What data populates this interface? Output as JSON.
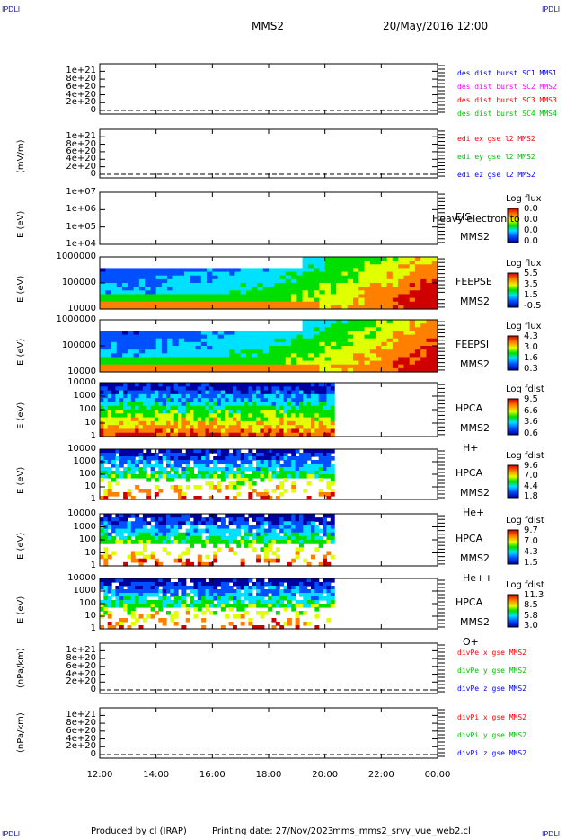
{
  "corner_marks": {
    "tl": "IPDLI",
    "tr": "IPDLI",
    "bl": "IPDLI",
    "br": "IPDLI"
  },
  "header": {
    "mission": "MMS2",
    "datetime": "20/May/2016 12:00"
  },
  "footer": {
    "produced": "Produced by cl (IRAP)",
    "printing": "Printing date: 27/Nov/2023",
    "file": "mms_mms2_srvy_vue_web2.cl"
  },
  "x_axis": {
    "ticks": [
      "12:00",
      "14:00",
      "16:00",
      "18:00",
      "20:00",
      "22:00",
      "00:00"
    ]
  },
  "colors": {
    "mms1": "#0000ff",
    "mms2": "#ff00ff",
    "mms3": "#ff0000",
    "mms4": "#00c000",
    "ex": "#ff0000",
    "ey": "#00c000",
    "ez": "#0000ff"
  },
  "chart_data": [
    {
      "id": "p1",
      "type": "line",
      "xlim": [
        "12:00",
        "00:00"
      ],
      "ylim": [
        0,
        1.1e+21
      ],
      "ytick_labels": [
        "1e+21",
        "8e+20",
        "6e+20",
        "4e+20",
        "2e+20",
        "0"
      ],
      "ylabel": "",
      "legend": [
        "des dist burst SC1 MMS1",
        "des dist burst SC2 MMS2",
        "des dist burst SC3 MMS3",
        "des dist burst SC4 MMS4"
      ],
      "series": [
        {
          "name": "des dist burst SC1 MMS1",
          "values": [
            0,
            0
          ]
        },
        {
          "name": "des dist burst SC2 MMS2",
          "values": [
            0,
            0
          ]
        },
        {
          "name": "des dist burst SC3 MMS3",
          "values": [
            0,
            0
          ]
        },
        {
          "name": "des dist burst SC4 MMS4",
          "values": [
            0,
            0
          ]
        }
      ]
    },
    {
      "id": "p2",
      "type": "line",
      "xlim": [
        "12:00",
        "00:00"
      ],
      "ylim": [
        0,
        1.1e+21
      ],
      "ytick_labels": [
        "1e+21",
        "8e+20",
        "6e+20",
        "4e+20",
        "2e+20",
        "0"
      ],
      "ylabel": "(mV/m)",
      "legend": [
        "edi ex gse l2 MMS2",
        "edi ey gse l2 MMS2",
        "edi ez gse l2 MMS2"
      ],
      "series": [
        {
          "name": "edi ex gse l2 MMS2",
          "values": [
            0,
            0
          ]
        },
        {
          "name": "edi ey gse l2 MMS2",
          "values": [
            0,
            0
          ]
        },
        {
          "name": "edi ez gse l2 MMS2",
          "values": [
            0,
            0
          ]
        }
      ]
    },
    {
      "id": "p3",
      "type": "heatmap",
      "xlim": [
        "12:00",
        "00:00"
      ],
      "ylim": [
        10000.0,
        10000000.0
      ],
      "yscale": "log",
      "ytick_labels": [
        "1e+07",
        "1e+06",
        "1e+05",
        "1e+04"
      ],
      "ylabel": "E (eV)",
      "instrument": "EIS",
      "spacecraft": "MMS2",
      "species": "",
      "overlay_text": "Heavy electron to",
      "colorbar_title": "Log flux",
      "colorbar_ticks": [
        "0.0",
        "0.0",
        "0.0",
        "0.0"
      ],
      "data_end": "12:00"
    },
    {
      "id": "p4",
      "type": "heatmap",
      "xlim": [
        "12:00",
        "00:00"
      ],
      "ylim": [
        10000.0,
        1000000.0
      ],
      "yscale": "log",
      "ytick_labels": [
        "1000000",
        "100000",
        "10000"
      ],
      "ylabel": "E (eV)",
      "instrument": "FEEPSE",
      "spacecraft": "MMS2",
      "species": "",
      "colorbar_title": "Log flux",
      "colorbar_ticks": [
        "5.5",
        "3.5",
        "1.5",
        "-0.5"
      ],
      "data_end": "00:00"
    },
    {
      "id": "p5",
      "type": "heatmap",
      "xlim": [
        "12:00",
        "00:00"
      ],
      "ylim": [
        10000.0,
        1000000.0
      ],
      "yscale": "log",
      "ytick_labels": [
        "1000000",
        "100000",
        "10000"
      ],
      "ylabel": "E (eV)",
      "instrument": "FEEPSI",
      "spacecraft": "MMS2",
      "species": "",
      "colorbar_title": "Log flux",
      "colorbar_ticks": [
        "4.3",
        "3.0",
        "1.6",
        "0.3"
      ],
      "data_end": "00:00"
    },
    {
      "id": "p6",
      "type": "heatmap",
      "xlim": [
        "12:00",
        "00:00"
      ],
      "ylim": [
        1,
        40000
      ],
      "yscale": "log",
      "ytick_labels": [
        "10000",
        "1000",
        "100",
        "10",
        "1"
      ],
      "ylabel": "E (eV)",
      "instrument": "HPCA",
      "spacecraft": "MMS2",
      "species": "H+",
      "colorbar_title": "Log fdist",
      "colorbar_ticks": [
        "9.5",
        "6.6",
        "3.6",
        "0.6"
      ],
      "data_end": "20:20"
    },
    {
      "id": "p7",
      "type": "heatmap",
      "xlim": [
        "12:00",
        "00:00"
      ],
      "ylim": [
        1,
        40000
      ],
      "yscale": "log",
      "ytick_labels": [
        "10000",
        "1000",
        "100",
        "10",
        "1"
      ],
      "ylabel": "E (eV)",
      "instrument": "HPCA",
      "spacecraft": "MMS2",
      "species": "He+",
      "colorbar_title": "Log fdist",
      "colorbar_ticks": [
        "9.6",
        "7.0",
        "4.4",
        "1.8"
      ],
      "data_end": "20:20"
    },
    {
      "id": "p8",
      "type": "heatmap",
      "xlim": [
        "12:00",
        "00:00"
      ],
      "ylim": [
        1,
        40000
      ],
      "yscale": "log",
      "ytick_labels": [
        "10000",
        "1000",
        "100",
        "10",
        "1"
      ],
      "ylabel": "E (eV)",
      "instrument": "HPCA",
      "spacecraft": "MMS2",
      "species": "He++",
      "colorbar_title": "Log fdist",
      "colorbar_ticks": [
        "9.7",
        "7.0",
        "4.3",
        "1.5"
      ],
      "data_end": "20:20"
    },
    {
      "id": "p9",
      "type": "heatmap",
      "xlim": [
        "12:00",
        "00:00"
      ],
      "ylim": [
        1,
        40000
      ],
      "yscale": "log",
      "ytick_labels": [
        "10000",
        "1000",
        "100",
        "10",
        "1"
      ],
      "ylabel": "E (eV)",
      "instrument": "HPCA",
      "spacecraft": "MMS2",
      "species": "O+",
      "colorbar_title": "Log fdist",
      "colorbar_ticks": [
        "11.3",
        "8.5",
        "5.8",
        "3.0"
      ],
      "data_end": "20:20"
    },
    {
      "id": "p10",
      "type": "line",
      "xlim": [
        "12:00",
        "00:00"
      ],
      "ylim": [
        0,
        1.1e+21
      ],
      "ytick_labels": [
        "1e+21",
        "8e+20",
        "6e+20",
        "4e+20",
        "2e+20",
        "0"
      ],
      "ylabel": "(nPa/km)",
      "legend": [
        "divPe x gse MMS2",
        "divPe y gse MMS2",
        "divPe z gse MMS2"
      ],
      "series": [
        {
          "name": "divPe x gse MMS2",
          "values": [
            0,
            0
          ]
        },
        {
          "name": "divPe y gse MMS2",
          "values": [
            0,
            0
          ]
        },
        {
          "name": "divPe z gse MMS2",
          "values": [
            0,
            0
          ]
        }
      ]
    },
    {
      "id": "p11",
      "type": "line",
      "xlim": [
        "12:00",
        "00:00"
      ],
      "ylim": [
        0,
        1.1e+21
      ],
      "ytick_labels": [
        "1e+21",
        "8e+20",
        "6e+20",
        "4e+20",
        "2e+20",
        "0"
      ],
      "ylabel": "(nPa/km)",
      "legend": [
        "divPi x gse MMS2",
        "divPi y gse MMS2",
        "divPi z gse MMS2"
      ],
      "series": [
        {
          "name": "divPi x gse MMS2",
          "values": [
            0,
            0
          ]
        },
        {
          "name": "divPi y gse MMS2",
          "values": [
            0,
            0
          ]
        },
        {
          "name": "divPi z gse MMS2",
          "values": [
            0,
            0
          ]
        }
      ]
    }
  ]
}
